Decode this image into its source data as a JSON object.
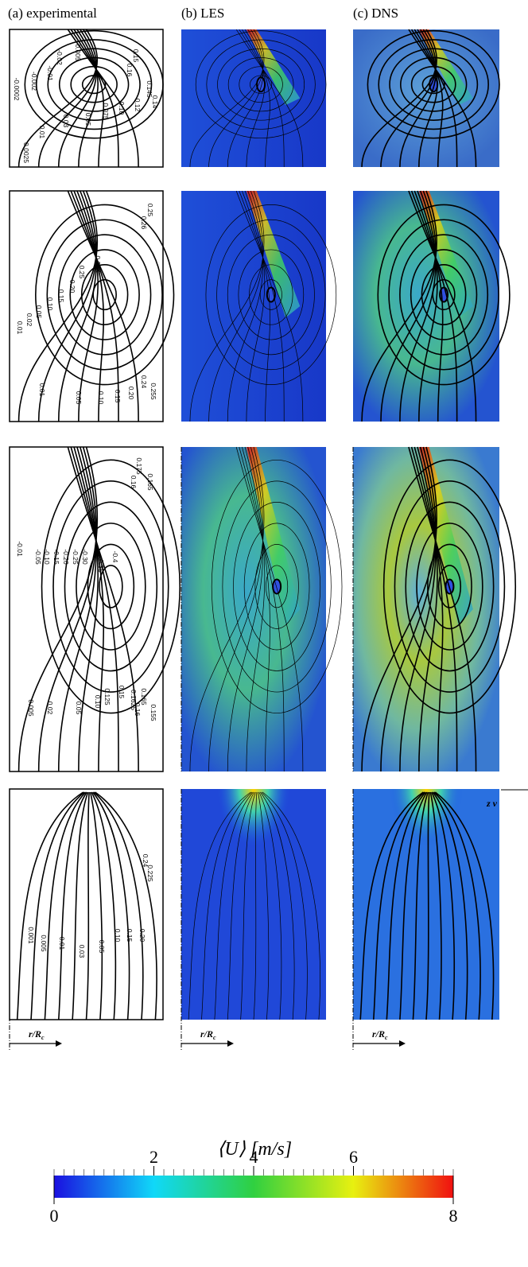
{
  "columns": [
    "(a) experimental",
    "(b) LES",
    "(c) DNS"
  ],
  "axis_label": {
    "main": "r/R",
    "sub": "c"
  },
  "edge_label": "z v",
  "experimental_contours": [
    [
      "0.15",
      "0.16",
      "0.145",
      "0.14",
      "0.12",
      "0.10",
      "0.075",
      "0.05",
      "0.03",
      "0.01",
      "0.0025",
      "-0.002",
      "-0.01",
      "-0.02",
      "0.005",
      "-0.0002"
    ],
    [
      "0.25",
      "0.26",
      "0.275",
      "0.25",
      "0.20",
      "0.15",
      "0.10",
      "0.05",
      "0.02",
      "0.01",
      "0.05",
      "0.10",
      "0.15",
      "0.20",
      "0.24",
      "0.255",
      "0.01"
    ],
    [
      "0.175",
      "0.16",
      "0.165",
      "-0.4",
      "-0.35",
      "-0.30",
      "-0.25",
      "-0.20",
      "-0.15",
      "-0.10",
      "-0.05",
      "-0.01",
      "0.165",
      "0.1625",
      "0.16",
      "0.155",
      "0.15",
      "0.125",
      "0.10",
      "0.05",
      "0.02",
      "0.005"
    ],
    [
      "0.24",
      "0.225",
      "0.20",
      "0.15",
      "0.10",
      "0.05",
      "0.03",
      "0.01",
      "0.005",
      "0.001"
    ]
  ],
  "colorbar": {
    "label": "⟨U⟩ [m/s]",
    "lim": [
      0,
      8
    ],
    "ticks": [
      0,
      2,
      4,
      6,
      8
    ],
    "colors": [
      "#1a10e0",
      "#10d8f8",
      "#30d040",
      "#e8f010",
      "#f01010"
    ]
  }
}
